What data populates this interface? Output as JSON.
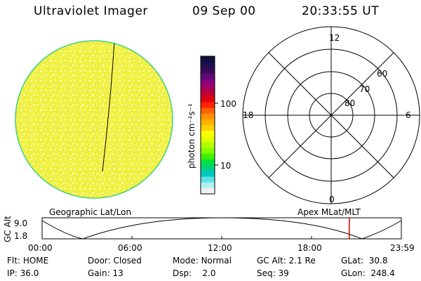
{
  "header": {
    "instrument": "Ultraviolet Imager",
    "date": "09 Sep 00",
    "time": "20:33:55 UT"
  },
  "colorbar": {
    "label": "photon cm⁻²s⁻¹",
    "ticks": [
      "100",
      "10"
    ],
    "colors": [
      "#101040",
      "#20104a",
      "#3a0a5a",
      "#5a0a70",
      "#8a0080",
      "#a00060",
      "#c00030",
      "#e00010",
      "#ff2000",
      "#ff6000",
      "#ff9000",
      "#ffb000",
      "#ffd000",
      "#ffff00",
      "#e0ff00",
      "#b0ff00",
      "#80ff00",
      "#40f000",
      "#00e040",
      "#00d080",
      "#00c8c0",
      "#60e0e8",
      "#b0f0f0",
      "#f0f0f0"
    ]
  },
  "polar": {
    "labels": {
      "top": "12",
      "bottom": "0",
      "left": "18",
      "right": "6"
    },
    "rings": [
      "60",
      "70",
      "80"
    ]
  },
  "timeline": {
    "left_title": "Geographic Lat/Lon",
    "right_title": "Apex MLat/MLT",
    "axis_label": "GC Alt",
    "y_ticks": [
      "9.0",
      "1.8"
    ],
    "x_ticks": [
      "00:00",
      "06:00",
      "12:00",
      "18:00",
      "23:59"
    ],
    "current_time_fraction": 0.855
  },
  "status": {
    "row1": [
      {
        "key": "Flt:",
        "value": "HOME"
      },
      {
        "key": "Door:",
        "value": "Closed"
      },
      {
        "key": "Mode:",
        "value": "Normal"
      },
      {
        "key": "GC Alt:",
        "value": "2.1 Re"
      },
      {
        "key": "GLat:",
        "value": "30.8"
      }
    ],
    "row2": [
      {
        "key": "IP:",
        "value": "36.0"
      },
      {
        "key": "Gain:",
        "value": "13"
      },
      {
        "key": "Dsp:",
        "value": "2.0"
      },
      {
        "key": "Seq:",
        "value": "39"
      },
      {
        "key": "GLon:",
        "value": "248.4"
      }
    ]
  },
  "colors": {
    "disk_fill": "#f0f040",
    "disk_edge": "#40d080",
    "marker": "#d00000"
  }
}
